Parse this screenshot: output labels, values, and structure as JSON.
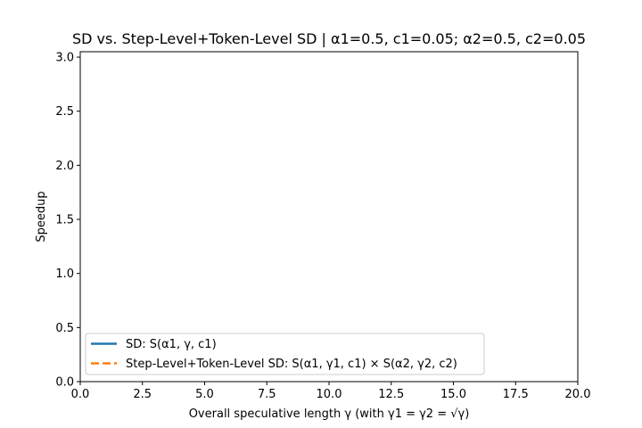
{
  "chart_data": {
    "type": "line",
    "title": "SD vs. Step-Level+Token-Level SD  |  α1=0.5, c1=0.05; α2=0.5, c2=0.05",
    "xlabel": "Overall speculative length γ  (with γ1 = γ2 = √γ)",
    "ylabel": "Speedup",
    "xlim": [
      0,
      20
    ],
    "ylim": [
      0,
      3.05
    ],
    "xticks": [
      0,
      2.5,
      5,
      7.5,
      10,
      12.5,
      15,
      17.5,
      20
    ],
    "xtick_labels": [
      "0.0",
      "2.5",
      "5.0",
      "7.5",
      "10.0",
      "12.5",
      "15.0",
      "17.5",
      "20.0"
    ],
    "yticks": [
      0,
      0.5,
      1,
      1.5,
      2,
      2.5,
      3
    ],
    "ytick_labels": [
      "0.0",
      "0.5",
      "1.0",
      "1.5",
      "2.0",
      "2.5",
      "3.0"
    ],
    "grid": false,
    "legend_position": "lower-left",
    "series": [
      {
        "name": "SD: S(α1, γ, c1)",
        "color": "#1f77b4",
        "style": "solid",
        "x": [],
        "y": []
      },
      {
        "name": "Step-Level+Token-Level SD: S(α1, γ1, c1) × S(α2, γ2, c2)",
        "color": "#ff7f0e",
        "style": "dashed",
        "x": [],
        "y": []
      }
    ]
  }
}
